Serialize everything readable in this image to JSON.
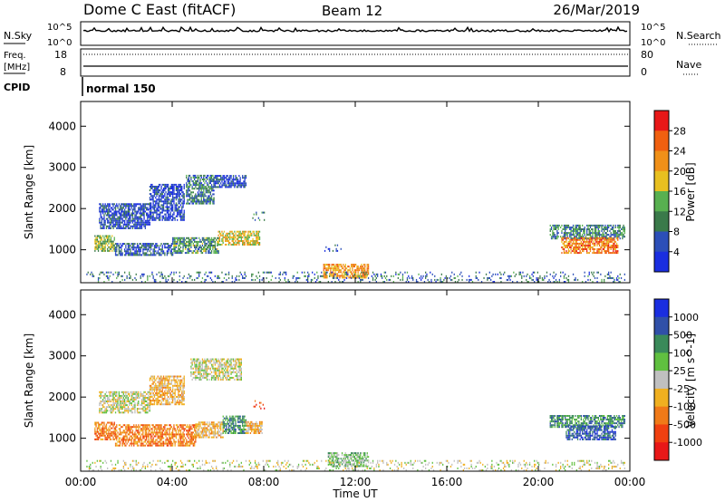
{
  "header": {
    "radar": "Dome C East (fitACF)",
    "beam": "Beam 12",
    "date": "26/Mar/2019"
  },
  "noise_panel": {
    "left_label": "N.Sky",
    "right_label": "N.Search",
    "left_ticks": [
      "10^5",
      "10^0"
    ],
    "right_ticks": [
      "10^5",
      "10^0"
    ]
  },
  "freq_panel": {
    "left_label_1": "Freq.",
    "left_label_2": "[MHz]",
    "right_label": "Nave",
    "left_ticks": [
      "18",
      "8"
    ],
    "right_ticks": [
      "80",
      "0"
    ]
  },
  "cpid": {
    "label": "CPID",
    "program": "normal 150"
  },
  "colors": {
    "frame": "#000000",
    "power_scale": [
      "#1a2ee0",
      "#2c4fb8",
      "#3a7a4a",
      "#58b050",
      "#e8c020",
      "#f09018",
      "#f06010",
      "#e81818"
    ],
    "velocity_scale": [
      "#e81818",
      "#f04010",
      "#f07a18",
      "#f0b020",
      "#c0c0c0",
      "#60c040",
      "#3a8a5a",
      "#3050a8",
      "#1a2ee0"
    ]
  },
  "chart_data": [
    {
      "type": "heatmap",
      "name": "power",
      "ylabel": "Slant Range [km]",
      "yticks": [
        1000,
        2000,
        3000,
        4000
      ],
      "ylim": [
        200,
        4600
      ],
      "xlim": [
        0,
        24
      ],
      "colorbar": {
        "label": "Power [dB]",
        "ticks": [
          "28",
          "24",
          "20",
          "16",
          "12",
          "8",
          "4"
        ],
        "range": [
          0,
          32
        ]
      },
      "regions": [
        {
          "t0": 0.6,
          "t1": 1.5,
          "r0": 950,
          "r1": 1350,
          "v": 14
        },
        {
          "t0": 1.5,
          "t1": 4.0,
          "r0": 850,
          "r1": 1150,
          "v": 6
        },
        {
          "t0": 4.0,
          "t1": 6.0,
          "r0": 900,
          "r1": 1300,
          "v": 11
        },
        {
          "t0": 6.0,
          "t1": 7.8,
          "r0": 1100,
          "r1": 1450,
          "v": 18
        },
        {
          "t0": 0.8,
          "t1": 3.0,
          "r0": 1500,
          "r1": 2100,
          "v": 5
        },
        {
          "t0": 3.0,
          "t1": 4.5,
          "r0": 1700,
          "r1": 2600,
          "v": 4
        },
        {
          "t0": 4.6,
          "t1": 5.8,
          "r0": 2100,
          "r1": 2800,
          "v": 9
        },
        {
          "t0": 5.8,
          "t1": 7.2,
          "r0": 2500,
          "r1": 2800,
          "v": 4
        },
        {
          "t0": 7.5,
          "t1": 8.0,
          "r0": 1700,
          "r1": 1900,
          "v": 10
        },
        {
          "t0": 10.6,
          "t1": 12.6,
          "r0": 300,
          "r1": 650,
          "v": 22
        },
        {
          "t0": 10.6,
          "t1": 11.4,
          "r0": 950,
          "r1": 1100,
          "v": 4
        },
        {
          "t0": 20.5,
          "t1": 23.8,
          "r0": 1250,
          "r1": 1600,
          "v": 10
        },
        {
          "t0": 21.0,
          "t1": 23.5,
          "r0": 900,
          "r1": 1300,
          "v": 24
        },
        {
          "t0": 0.2,
          "t1": 23.8,
          "r0": 200,
          "r1": 450,
          "v": 8
        }
      ]
    },
    {
      "type": "heatmap",
      "name": "velocity",
      "ylabel": "Slant Range [km]",
      "yticks": [
        1000,
        2000,
        3000,
        4000
      ],
      "ylim": [
        200,
        4600
      ],
      "xlim": [
        0,
        24
      ],
      "xticks": [
        "00:00",
        "04:00",
        "08:00",
        "12:00",
        "16:00",
        "20:00",
        "00:00"
      ],
      "xlabel": "Time UT",
      "colorbar": {
        "label": "Velocity [m s^-1]",
        "ticks": [
          "1000",
          "500",
          "100",
          "25",
          "-25",
          "-100",
          "-500",
          "-1000"
        ]
      },
      "regions": [
        {
          "t0": 0.6,
          "t1": 1.5,
          "r0": 950,
          "r1": 1400,
          "v": 2
        },
        {
          "t0": 1.5,
          "t1": 5.0,
          "r0": 800,
          "r1": 1300,
          "v": 2
        },
        {
          "t0": 5.0,
          "t1": 6.2,
          "r0": 1000,
          "r1": 1400,
          "v": 3
        },
        {
          "t0": 6.2,
          "t1": 7.2,
          "r0": 1100,
          "r1": 1550,
          "v": 6
        },
        {
          "t0": 7.2,
          "t1": 7.9,
          "r0": 1100,
          "r1": 1400,
          "v": 3
        },
        {
          "t0": 0.8,
          "t1": 3.0,
          "r0": 1600,
          "r1": 2100,
          "v": 4
        },
        {
          "t0": 3.0,
          "t1": 4.5,
          "r0": 1800,
          "r1": 2500,
          "v": 3
        },
        {
          "t0": 4.8,
          "t1": 7.0,
          "r0": 2400,
          "r1": 2900,
          "v": 4
        },
        {
          "t0": 7.5,
          "t1": 8.0,
          "r0": 1700,
          "r1": 1900,
          "v": 1
        },
        {
          "t0": 10.8,
          "t1": 12.6,
          "r0": 300,
          "r1": 650,
          "v": 5
        },
        {
          "t0": 20.5,
          "t1": 23.8,
          "r0": 1250,
          "r1": 1550,
          "v": 6
        },
        {
          "t0": 21.2,
          "t1": 23.4,
          "r0": 950,
          "r1": 1300,
          "v": 7
        },
        {
          "t0": 0.2,
          "t1": 23.8,
          "r0": 200,
          "r1": 450,
          "v": 4
        }
      ]
    }
  ]
}
